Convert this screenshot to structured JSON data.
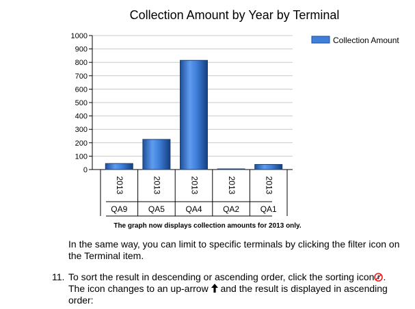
{
  "chart_data": {
    "type": "bar",
    "title": "Collection Amount by Year by Terminal",
    "categories": [
      {
        "year": "2013",
        "terminal": "QA9"
      },
      {
        "year": "2013",
        "terminal": "QA5"
      },
      {
        "year": "2013",
        "terminal": "QA4"
      },
      {
        "year": "2013",
        "terminal": "QA2"
      },
      {
        "year": "2013",
        "terminal": "QA1"
      }
    ],
    "series": [
      {
        "name": "Collection Amount",
        "values": [
          45,
          225,
          815,
          5,
          38
        ]
      }
    ],
    "ylim": [
      0,
      1000
    ],
    "yticks": [
      "0",
      "100",
      "200",
      "300",
      "400",
      "500",
      "600",
      "700",
      "800",
      "900",
      "1000"
    ],
    "grid": true,
    "legend_position": "top-right",
    "bar_color": "#3f7fd9"
  },
  "caption": "The graph now displays collection amounts for 2013 only.",
  "paragraph": "In the same way, you can limit to specific terminals by clicking the filter icon on the Terminal item.",
  "step": {
    "number": "11.",
    "text_before_sort_icon": "To sort the result in descending or ascending order, click the sorting icon",
    "text_after_sort_icon": ".",
    "text_before_up_icon": "The icon changes to an up-arrow ",
    "text_after_up_icon": " and the result is displayed in ascending order:",
    "sort_icon": "sort-disabled-icon",
    "up_icon": "up-arrow-icon"
  }
}
